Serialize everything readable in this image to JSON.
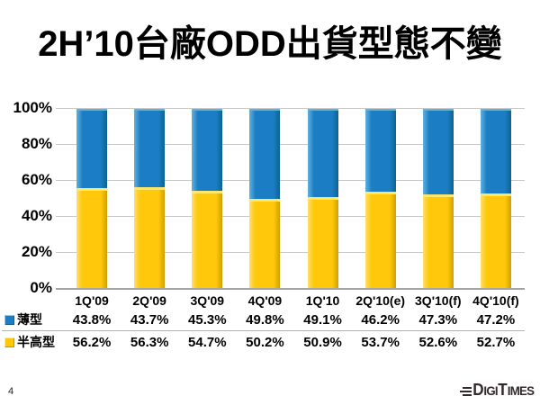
{
  "slide": {
    "title": "2H’10台廠ODD出貨型態不變",
    "page_number": "4",
    "logo": {
      "part_d": "D",
      "part_igi": "IGI",
      "part_t": "T",
      "part_imes": "IMES"
    }
  },
  "chart_data": {
    "type": "bar",
    "stacked": true,
    "stacked_total": 100,
    "title": "",
    "xlabel": "",
    "ylabel": "",
    "ylim": [
      0,
      100
    ],
    "grid": true,
    "legend_position": "bottom-table",
    "value_suffix": "%",
    "yticks": [
      "0%",
      "20%",
      "40%",
      "60%",
      "80%",
      "100%"
    ],
    "categories": [
      "1Q'09",
      "2Q'09",
      "3Q'09",
      "4Q'09",
      "1Q'10",
      "2Q'10(e)",
      "3Q'10(f)",
      "4Q'10(f)"
    ],
    "series": [
      {
        "name": "薄型",
        "color": "#1b7ec4",
        "stack_position": "top",
        "values": [
          43.8,
          43.7,
          45.3,
          49.8,
          49.1,
          46.2,
          47.3,
          47.2
        ]
      },
      {
        "name": "半高型",
        "color": "#ffc80a",
        "stack_position": "bottom",
        "values": [
          56.2,
          56.3,
          54.7,
          50.2,
          50.9,
          53.7,
          52.6,
          52.7
        ]
      }
    ]
  }
}
